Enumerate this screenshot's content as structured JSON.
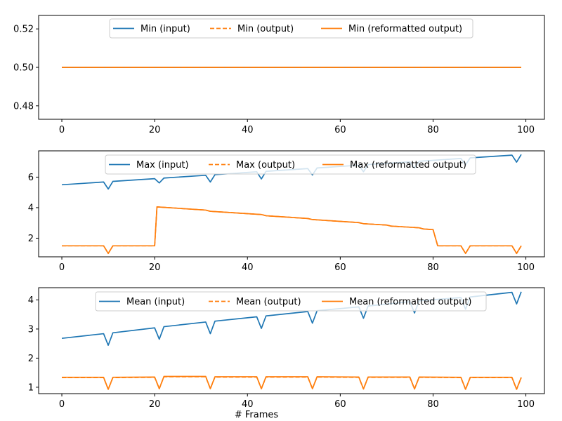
{
  "chart_data": [
    {
      "type": "line",
      "xlim": [
        -5,
        104
      ],
      "ylim": [
        0.473,
        0.527
      ],
      "xticks": [
        0,
        20,
        40,
        60,
        80,
        100
      ],
      "yticks": [
        0.48,
        0.5,
        0.52
      ],
      "ytick_decimals": 2,
      "legend": "upper center, 3 columns",
      "series": [
        {
          "name": "Min (input)",
          "color": "#1f77b4",
          "style": "solid",
          "points": [
            [
              0,
              0.5
            ],
            [
              99,
              0.5
            ]
          ]
        },
        {
          "name": "Min (output)",
          "color": "#ff7f0e",
          "style": "dashed",
          "points": [
            [
              0,
              0.5
            ],
            [
              99,
              0.5
            ]
          ]
        },
        {
          "name": "Min (reformatted output)",
          "color": "#ff7f0e",
          "style": "solid",
          "points": [
            [
              0,
              0.5
            ],
            [
              99,
              0.5
            ]
          ]
        }
      ]
    },
    {
      "type": "line",
      "xlim": [
        -5,
        104
      ],
      "ylim": [
        0.78,
        7.72
      ],
      "xticks": [
        0,
        20,
        40,
        60,
        80,
        100
      ],
      "yticks": [
        2,
        4,
        6
      ],
      "ytick_decimals": 0,
      "legend": "upper center, 3 columns",
      "series": [
        {
          "name": "Max (input)",
          "color": "#1f77b4",
          "style": "solid",
          "points": [
            [
              0,
              5.5
            ],
            [
              9,
              5.68
            ],
            [
              10,
              5.22
            ],
            [
              11,
              5.72
            ],
            [
              20,
              5.9
            ],
            [
              21,
              5.62
            ],
            [
              22,
              5.94
            ],
            [
              31,
              6.12
            ],
            [
              32,
              5.68
            ],
            [
              33,
              6.16
            ],
            [
              42,
              6.35
            ],
            [
              43,
              5.88
            ],
            [
              44,
              6.38
            ],
            [
              53,
              6.56
            ],
            [
              54,
              6.14
            ],
            [
              55,
              6.6
            ],
            [
              64,
              6.78
            ],
            [
              65,
              6.35
            ],
            [
              66,
              6.82
            ],
            [
              75,
              7.0
            ],
            [
              76,
              6.58
            ],
            [
              77,
              7.04
            ],
            [
              86,
              7.22
            ],
            [
              87,
              6.8
            ],
            [
              88,
              7.26
            ],
            [
              97,
              7.44
            ],
            [
              98,
              6.98
            ],
            [
              99,
              7.48
            ]
          ]
        },
        {
          "name": "Max (output)",
          "color": "#ff7f0e",
          "style": "dashed",
          "points": [
            [
              0,
              1.5
            ],
            [
              9,
              1.5
            ],
            [
              10,
              1.0
            ],
            [
              11,
              1.5
            ],
            [
              19,
              1.5
            ],
            [
              20,
              1.5
            ],
            [
              20.5,
              4.05
            ],
            [
              25,
              3.96
            ],
            [
              31,
              3.84
            ],
            [
              32,
              3.76
            ],
            [
              43,
              3.55
            ],
            [
              44,
              3.47
            ],
            [
              53,
              3.29
            ],
            [
              54,
              3.22
            ],
            [
              64,
              3.02
            ],
            [
              65,
              2.95
            ],
            [
              70,
              2.86
            ],
            [
              71,
              2.79
            ],
            [
              75,
              2.72
            ],
            [
              77,
              2.68
            ],
            [
              78,
              2.6
            ],
            [
              80,
              2.56
            ],
            [
              81,
              1.5
            ],
            [
              86,
              1.5
            ],
            [
              87,
              1.0
            ],
            [
              88,
              1.5
            ],
            [
              97,
              1.5
            ],
            [
              98,
              1.0
            ],
            [
              99,
              1.5
            ]
          ]
        },
        {
          "name": "Max (reformatted output)",
          "color": "#ff7f0e",
          "style": "solid",
          "points": [
            [
              0,
              1.5
            ],
            [
              9,
              1.5
            ],
            [
              10,
              1.0
            ],
            [
              11,
              1.5
            ],
            [
              19,
              1.5
            ],
            [
              20,
              1.5
            ],
            [
              20.5,
              4.05
            ],
            [
              25,
              3.96
            ],
            [
              31,
              3.84
            ],
            [
              32,
              3.76
            ],
            [
              43,
              3.55
            ],
            [
              44,
              3.47
            ],
            [
              53,
              3.29
            ],
            [
              54,
              3.22
            ],
            [
              64,
              3.02
            ],
            [
              65,
              2.95
            ],
            [
              70,
              2.86
            ],
            [
              71,
              2.79
            ],
            [
              75,
              2.72
            ],
            [
              77,
              2.68
            ],
            [
              78,
              2.6
            ],
            [
              80,
              2.56
            ],
            [
              81,
              1.5
            ],
            [
              86,
              1.5
            ],
            [
              87,
              1.0
            ],
            [
              88,
              1.5
            ],
            [
              97,
              1.5
            ],
            [
              98,
              1.0
            ],
            [
              99,
              1.5
            ]
          ]
        }
      ]
    },
    {
      "type": "line",
      "xlabel": "# Frames",
      "xlim": [
        -5,
        104
      ],
      "ylim": [
        0.78,
        4.42
      ],
      "xticks": [
        0,
        20,
        40,
        60,
        80,
        100
      ],
      "yticks": [
        1,
        2,
        3,
        4
      ],
      "ytick_decimals": 0,
      "legend": "upper center, 3 columns",
      "series": [
        {
          "name": "Mean (input)",
          "color": "#1f77b4",
          "style": "solid",
          "points": [
            [
              0,
              2.68
            ],
            [
              9,
              2.84
            ],
            [
              10,
              2.44
            ],
            [
              11,
              2.87
            ],
            [
              20,
              3.04
            ],
            [
              21,
              2.65
            ],
            [
              22,
              3.08
            ],
            [
              31,
              3.24
            ],
            [
              32,
              2.84
            ],
            [
              33,
              3.27
            ],
            [
              42,
              3.42
            ],
            [
              43,
              3.02
            ],
            [
              44,
              3.45
            ],
            [
              53,
              3.6
            ],
            [
              54,
              3.2
            ],
            [
              55,
              3.63
            ],
            [
              64,
              3.76
            ],
            [
              65,
              3.37
            ],
            [
              66,
              3.79
            ],
            [
              75,
              3.94
            ],
            [
              76,
              3.55
            ],
            [
              77,
              3.97
            ],
            [
              86,
              4.08
            ],
            [
              87,
              3.68
            ],
            [
              88,
              4.1
            ],
            [
              97,
              4.26
            ],
            [
              98,
              3.86
            ],
            [
              99,
              4.28
            ]
          ]
        },
        {
          "name": "Mean (output)",
          "color": "#ff7f0e",
          "style": "dashed",
          "points": [
            [
              0,
              1.33
            ],
            [
              9,
              1.33
            ],
            [
              10,
              0.93
            ],
            [
              11,
              1.33
            ],
            [
              20,
              1.34
            ],
            [
              21,
              0.95
            ],
            [
              22,
              1.36
            ],
            [
              31,
              1.36
            ],
            [
              32,
              0.95
            ],
            [
              33,
              1.35
            ],
            [
              42,
              1.35
            ],
            [
              43,
              0.95
            ],
            [
              44,
              1.35
            ],
            [
              53,
              1.35
            ],
            [
              54,
              0.95
            ],
            [
              55,
              1.35
            ],
            [
              64,
              1.34
            ],
            [
              65,
              0.94
            ],
            [
              66,
              1.34
            ],
            [
              75,
              1.34
            ],
            [
              76,
              0.94
            ],
            [
              77,
              1.34
            ],
            [
              86,
              1.33
            ],
            [
              87,
              0.93
            ],
            [
              88,
              1.33
            ],
            [
              97,
              1.33
            ],
            [
              98,
              0.93
            ],
            [
              99,
              1.33
            ]
          ]
        },
        {
          "name": "Mean (reformatted output)",
          "color": "#ff7f0e",
          "style": "solid",
          "points": [
            [
              0,
              1.34
            ],
            [
              9,
              1.34
            ],
            [
              10,
              0.93
            ],
            [
              11,
              1.34
            ],
            [
              20,
              1.35
            ],
            [
              21,
              0.95
            ],
            [
              22,
              1.37
            ],
            [
              31,
              1.37
            ],
            [
              32,
              0.95
            ],
            [
              33,
              1.36
            ],
            [
              42,
              1.36
            ],
            [
              43,
              0.95
            ],
            [
              44,
              1.36
            ],
            [
              53,
              1.36
            ],
            [
              54,
              0.95
            ],
            [
              55,
              1.36
            ],
            [
              64,
              1.35
            ],
            [
              65,
              0.94
            ],
            [
              66,
              1.35
            ],
            [
              75,
              1.35
            ],
            [
              76,
              0.94
            ],
            [
              77,
              1.35
            ],
            [
              86,
              1.34
            ],
            [
              87,
              0.93
            ],
            [
              88,
              1.34
            ],
            [
              97,
              1.34
            ],
            [
              98,
              0.93
            ],
            [
              99,
              1.34
            ]
          ]
        }
      ]
    }
  ]
}
